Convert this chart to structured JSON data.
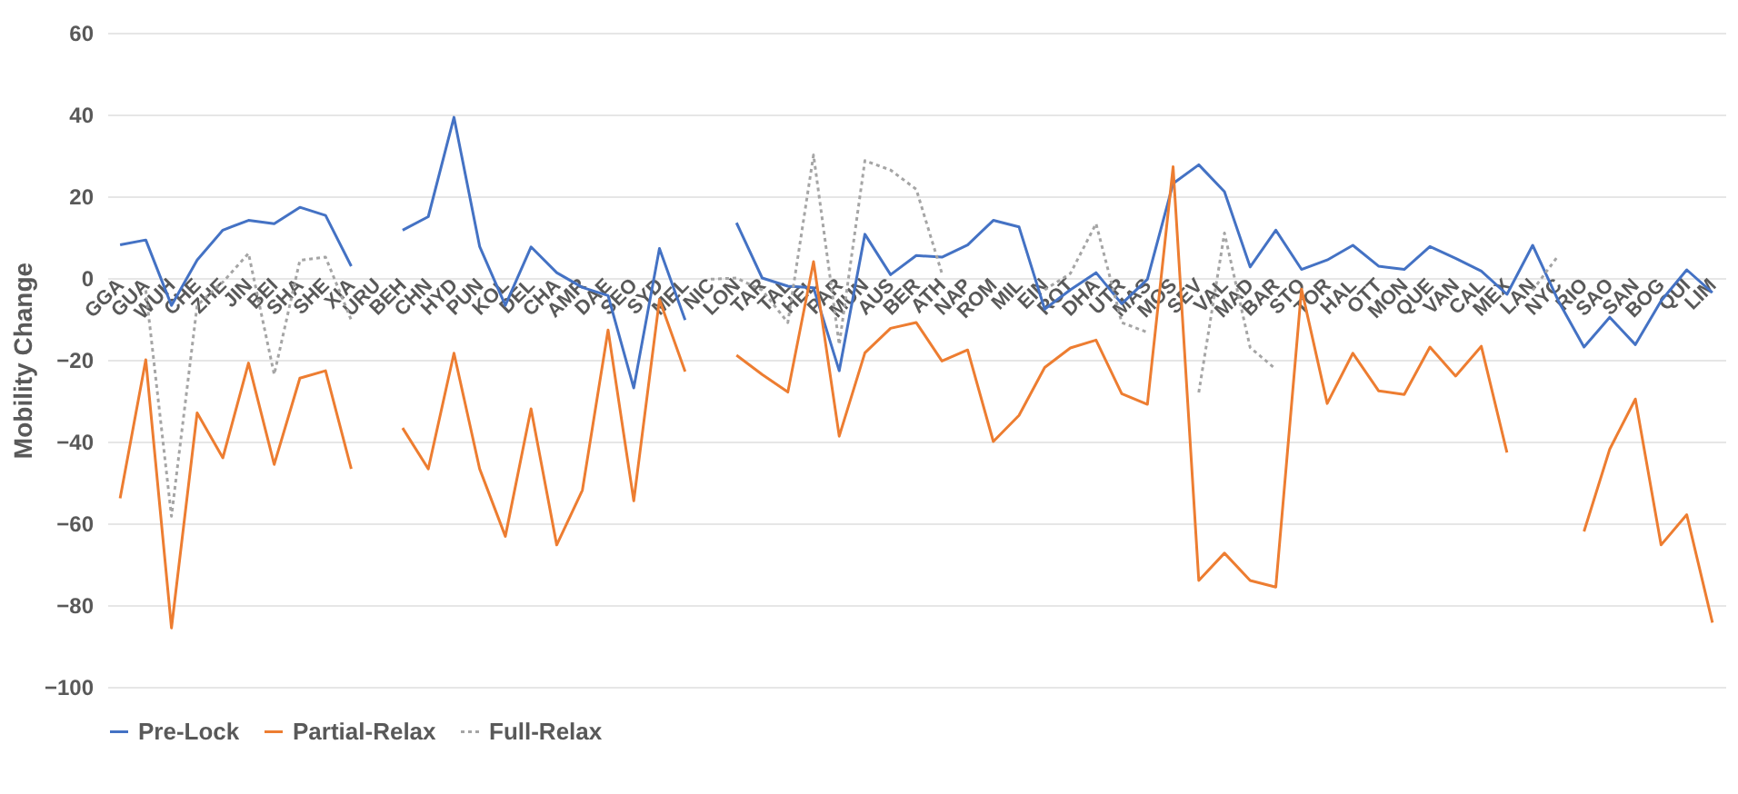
{
  "chart_data": {
    "type": "line",
    "ylabel": "Mobility Change",
    "categories": [
      "GGA",
      "GUA",
      "WUH",
      "CHE",
      "ZHE",
      "JIN",
      "BEI",
      "SHA",
      "SHE",
      "XIA",
      "URU",
      "BEH",
      "CHN",
      "HYD",
      "PUN",
      "KOL",
      "DEL",
      "CHA",
      "AMR",
      "DAE",
      "SEO",
      "SYD",
      "MEL",
      "NIC",
      "LON",
      "TAR",
      "TAL",
      "HEL",
      "PAR",
      "MUN",
      "AUS",
      "BER",
      "ATH",
      "NAP",
      "ROM",
      "MIL",
      "EIN",
      "ROT",
      "DHA",
      "UTR",
      "MAS",
      "MOS",
      "SEV",
      "VAL",
      "MAD",
      "BAR",
      "STO",
      "TOR",
      "HAL",
      "OTT",
      "MON",
      "QUE",
      "VAN",
      "CAL",
      "MEX",
      "LAN",
      "NYC",
      "RIO",
      "SAO",
      "SAN",
      "BOG",
      "QUI",
      "LIM"
    ],
    "series": [
      {
        "name": "Pre-Lock",
        "color": "#4472c4",
        "line_style": "solid",
        "values": [
          8.1,
          9.3,
          -6.7,
          4.4,
          11.7,
          14.1,
          13.3,
          17.3,
          15.3,
          2.9,
          null,
          11.7,
          15,
          39.3,
          7.7,
          -6.7,
          7.6,
          1.3,
          -2.3,
          -4.3,
          -26.9,
          7.2,
          -10.3,
          null,
          13.5,
          0,
          -2,
          -2.4,
          -22.7,
          10.7,
          0.8,
          5.5,
          5.1,
          8.1,
          14.1,
          12.5,
          -7.6,
          -2.9,
          1.3,
          -6.3,
          -0.3,
          23.1,
          27.7,
          21.1,
          2.7,
          11.7,
          2.1,
          4.4,
          8,
          2.9,
          2.1,
          7.7,
          4.8,
          1.7,
          -4,
          8,
          -5.6,
          -16.9,
          -9.6,
          -16.3,
          -5.6,
          2,
          -3.6
        ]
      },
      {
        "name": "Partial-Relax",
        "color": "#ed7d31",
        "line_style": "solid",
        "values": [
          -53.9,
          -20,
          -85.6,
          -33,
          -44,
          -20.8,
          -45.6,
          -24.5,
          -22.7,
          -46.7,
          null,
          -36.7,
          -46.7,
          -18.4,
          -46.7,
          -63.2,
          -32,
          -65.3,
          -51.9,
          -12.7,
          -54.5,
          -5.3,
          -22.9,
          null,
          -18.9,
          -23.6,
          -27.9,
          4,
          -38.7,
          -18.3,
          -12.3,
          -10.9,
          -20.3,
          -17.6,
          -40,
          -33.6,
          -21.9,
          -17.1,
          -15.2,
          -28.3,
          -30.9,
          27.2,
          -74,
          -67.3,
          -74,
          -75.6,
          -2.7,
          -30.7,
          -18.4,
          -27.6,
          -28.5,
          -16.9,
          -24,
          -16.7,
          -42.7,
          null,
          null,
          -62,
          -41.9,
          -29.6,
          -65.3,
          -57.9,
          -84.3
        ]
      },
      {
        "name": "Full-Relax",
        "color": "#a5a5a5",
        "line_style": "dotted",
        "values": [
          null,
          -3,
          -58.3,
          -6.7,
          -1,
          6,
          -23.6,
          4.3,
          5.1,
          -10.3,
          null,
          null,
          null,
          null,
          null,
          null,
          null,
          null,
          null,
          null,
          null,
          null,
          null,
          -0.3,
          0,
          -3,
          -10.9,
          30.1,
          -16.3,
          28.7,
          26.4,
          21.7,
          1.1,
          null,
          null,
          null,
          -2.9,
          1.1,
          13.3,
          -10.9,
          -13.3,
          null,
          -28,
          11,
          -17,
          -22.3,
          null,
          null,
          null,
          null,
          null,
          null,
          null,
          null,
          null,
          -3,
          5.5,
          null,
          null,
          null,
          null,
          null,
          null
        ]
      }
    ],
    "ylim": [
      -100,
      60
    ],
    "yticks": [
      -100,
      -80,
      -60,
      -40,
      -20,
      0,
      20,
      40,
      60
    ],
    "grid": "y",
    "legend": "bottom"
  }
}
